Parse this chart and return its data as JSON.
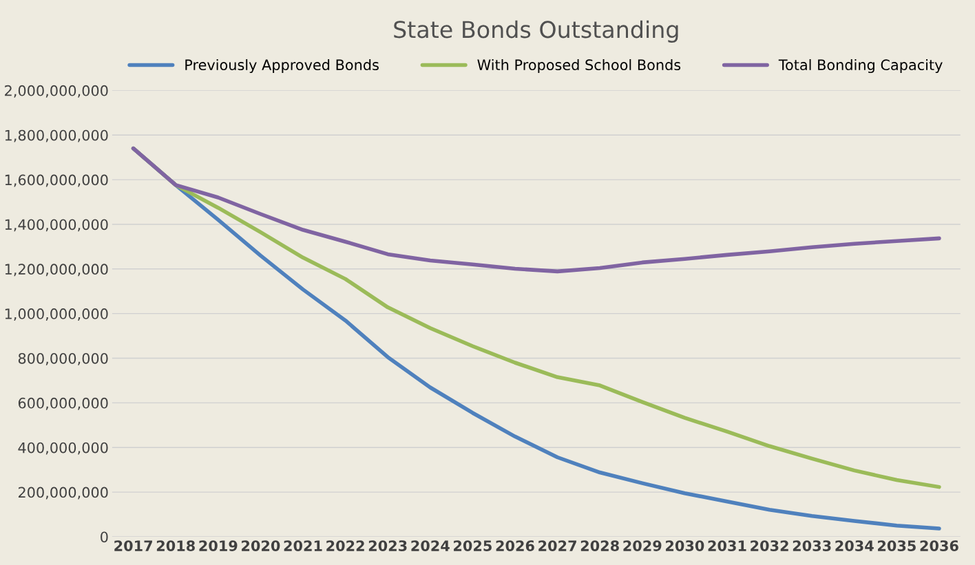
{
  "chart_data": {
    "type": "line",
    "title": "State Bonds Outstanding",
    "categories": [
      "2017",
      "2018",
      "2019",
      "2020",
      "2021",
      "2022",
      "2023",
      "2024",
      "2025",
      "2026",
      "2027",
      "2028",
      "2029",
      "2030",
      "2031",
      "2032",
      "2033",
      "2034",
      "2035",
      "2036"
    ],
    "series": [
      {
        "name": "Previously Approved Bonds",
        "color": "#4f81bd",
        "values": [
          1740000000,
          1576000000,
          1420000000,
          1260000000,
          1108000000,
          969000000,
          805000000,
          669000000,
          555000000,
          449000000,
          356000000,
          288000000,
          240000000,
          195000000,
          158000000,
          121000000,
          93000000,
          71000000,
          50000000,
          37000000
        ]
      },
      {
        "name": "With Proposed School Bonds",
        "color": "#9bbb59",
        "values": [
          1740000000,
          1576000000,
          1474000000,
          1365000000,
          1251000000,
          1155000000,
          1028000000,
          935000000,
          854000000,
          780000000,
          715000000,
          678000000,
          604000000,
          533000000,
          471000000,
          406000000,
          350000000,
          297000000,
          254000000,
          223000000
        ]
      },
      {
        "name": "Total Bonding Capacity",
        "color": "#8064a2",
        "values": [
          1740000000,
          1576000000,
          1520000000,
          1446000000,
          1375000000,
          1322000000,
          1266000000,
          1238000000,
          1220000000,
          1201000000,
          1189000000,
          1204000000,
          1229000000,
          1245000000,
          1263000000,
          1279000000,
          1297000000,
          1313000000,
          1325000000,
          1337000000
        ]
      }
    ],
    "ylim": [
      0,
      2000000000
    ],
    "yticks": [
      {
        "value": 0,
        "label": "0"
      },
      {
        "value": 200000000,
        "label": "200,000,000"
      },
      {
        "value": 400000000,
        "label": "400,000,000"
      },
      {
        "value": 600000000,
        "label": "600,000,000"
      },
      {
        "value": 800000000,
        "label": "800,000,000"
      },
      {
        "value": 1000000000,
        "label": "1,000,000,000"
      },
      {
        "value": 1200000000,
        "label": "1,200,000,000"
      },
      {
        "value": 1400000000,
        "label": "1,400,000,000"
      },
      {
        "value": 1600000000,
        "label": "1,600,000,000"
      },
      {
        "value": 1800000000,
        "label": "1,800,000,000"
      },
      {
        "value": 2000000000,
        "label": "2,000,000,000"
      }
    ],
    "grid": "y",
    "legend": "top",
    "marker": "none",
    "line_style": "solid"
  }
}
